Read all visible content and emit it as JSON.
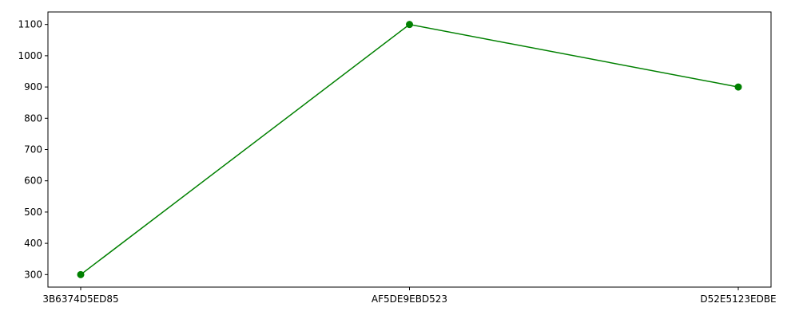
{
  "chart_data": {
    "type": "line",
    "categories": [
      "3B6374D5ED85",
      "AF5DE9EBD523",
      "D52E5123EDBE"
    ],
    "series": [
      {
        "values": [
          300,
          1100,
          900
        ],
        "color": "#008000",
        "marker": "circle"
      }
    ],
    "yticks": [
      300,
      400,
      500,
      600,
      700,
      800,
      900,
      1000,
      1100
    ],
    "ylim": [
      260,
      1140
    ],
    "grid": false,
    "title": "",
    "xlabel": "",
    "ylabel": ""
  }
}
